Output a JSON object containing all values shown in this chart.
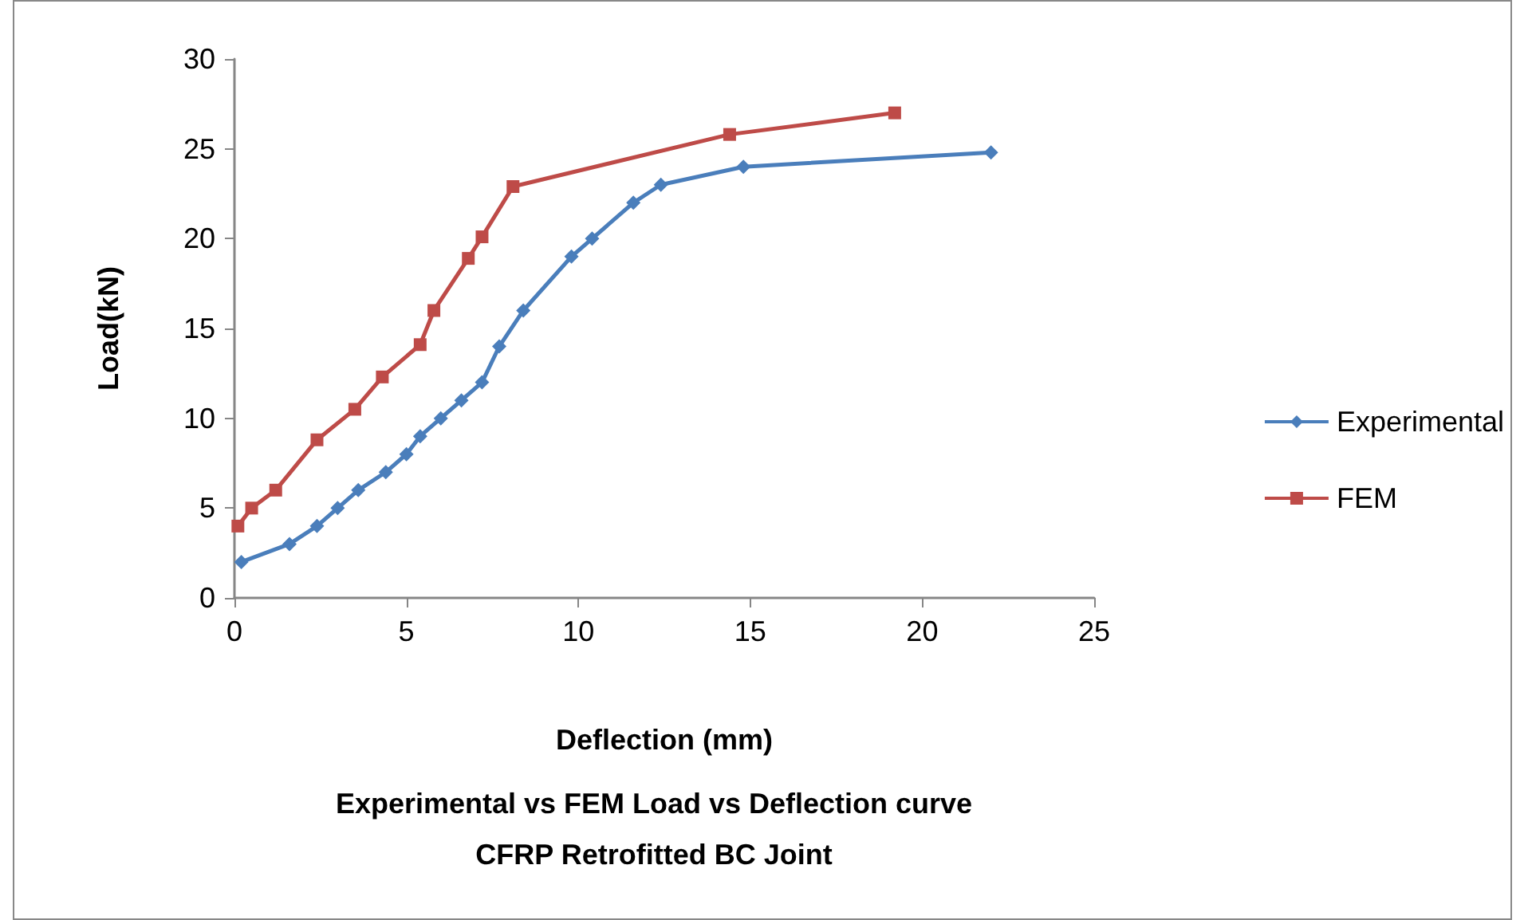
{
  "chart_data": {
    "type": "line",
    "title": "Experimental vs FEM Load vs Deflection curve",
    "subtitle": "CFRP Retrofitted BC Joint",
    "xlabel": "Deflection (mm)",
    "ylabel": "Load(kN)",
    "xlim": [
      0,
      25
    ],
    "xticks": [
      0,
      5,
      10,
      15,
      20,
      25
    ],
    "ylim": [
      0,
      30
    ],
    "yticks": [
      0,
      5,
      10,
      15,
      20,
      25,
      30
    ],
    "grid": false,
    "legend": "right",
    "series": [
      {
        "name": "Experimental",
        "color": "#4a7ebb",
        "marker": "diamond",
        "x": [
          0.2,
          1.6,
          2.4,
          3,
          3.6,
          4.4,
          5,
          5.4,
          6,
          6.6,
          7.2,
          7.7,
          8.4,
          9.8,
          10.4,
          11.6,
          12.4,
          14.8,
          22
        ],
        "values": [
          2,
          3,
          4,
          5,
          6,
          7,
          8,
          9,
          10,
          11,
          12,
          14,
          16,
          19,
          20,
          22,
          23,
          24,
          24.8
        ]
      },
      {
        "name": "FEM",
        "color": "#be4b48",
        "marker": "square",
        "x": [
          0.1,
          0.5,
          1.2,
          2.4,
          3.5,
          4.3,
          5.4,
          5.8,
          6.8,
          7.2,
          8.1,
          14.4,
          19.2
        ],
        "values": [
          4,
          5,
          6,
          8.8,
          10.5,
          12.3,
          14.1,
          16,
          18.9,
          20.1,
          22.9,
          25.8,
          27
        ]
      }
    ]
  }
}
